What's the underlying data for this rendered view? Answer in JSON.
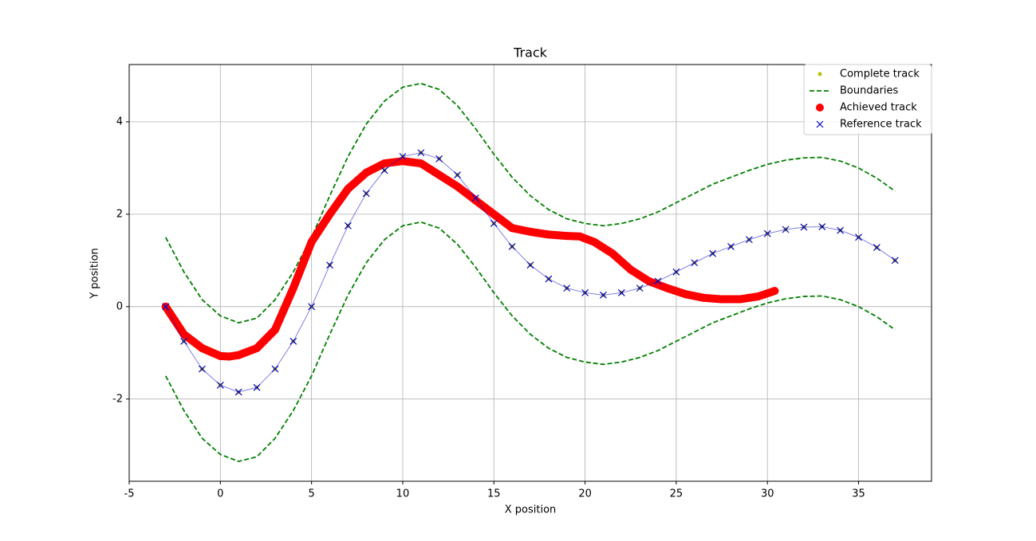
{
  "chart_data": {
    "type": "track",
    "title": "Track",
    "x_label": "X position",
    "y_label": "Y position",
    "xlim": [
      -5,
      39
    ],
    "ylim": [
      -3.78,
      5.24
    ],
    "xticks": [
      -5,
      0,
      5,
      10,
      15,
      20,
      25,
      30,
      35
    ],
    "yticks": [
      -2,
      0,
      2,
      4
    ],
    "grid": true,
    "legend": "upper right",
    "series": [
      {
        "name": "Complete track",
        "color": "#bfbf00",
        "style": "dot",
        "x": [
          -3,
          -2,
          -1,
          0,
          1,
          2,
          3,
          4,
          5,
          6,
          7,
          8,
          9,
          10,
          11,
          12,
          13,
          14,
          15,
          16,
          17,
          18,
          19,
          20,
          21,
          22,
          23,
          24,
          25,
          26,
          27,
          28,
          29,
          30,
          31,
          32,
          33,
          34,
          35,
          36,
          37
        ],
        "y": [
          0,
          -0.75,
          -1.35,
          -1.7,
          -1.85,
          -1.75,
          -1.35,
          -0.75,
          0,
          0.9,
          1.75,
          2.45,
          2.95,
          3.25,
          3.33,
          3.2,
          2.85,
          2.35,
          1.8,
          1.3,
          0.9,
          0.6,
          0.4,
          0.3,
          0.25,
          0.3,
          0.4,
          0.55,
          0.75,
          0.95,
          1.15,
          1.3,
          1.45,
          1.58,
          1.67,
          1.72,
          1.73,
          1.65,
          1.5,
          1.28,
          1.0
        ]
      },
      {
        "name": "Boundaries",
        "color": "#008000",
        "style": "dashed",
        "x": [
          -3,
          -2,
          -1,
          0,
          1,
          2,
          3,
          4,
          5,
          6,
          7,
          8,
          9,
          10,
          11,
          12,
          13,
          14,
          15,
          16,
          17,
          18,
          19,
          20,
          21,
          22,
          23,
          24,
          25,
          26,
          27,
          28,
          29,
          30,
          31,
          32,
          33,
          34,
          35,
          36,
          37
        ],
        "y_upper": [
          1.5,
          0.75,
          0.15,
          -0.2,
          -0.35,
          -0.25,
          0.15,
          0.75,
          1.5,
          2.4,
          3.25,
          3.95,
          4.45,
          4.75,
          4.83,
          4.7,
          4.35,
          3.85,
          3.3,
          2.8,
          2.4,
          2.1,
          1.9,
          1.8,
          1.75,
          1.8,
          1.9,
          2.05,
          2.25,
          2.45,
          2.65,
          2.8,
          2.95,
          3.08,
          3.17,
          3.22,
          3.23,
          3.15,
          3.0,
          2.78,
          2.5
        ],
        "y_lower": [
          -1.5,
          -2.25,
          -2.85,
          -3.2,
          -3.35,
          -3.25,
          -2.85,
          -2.25,
          -1.5,
          -0.6,
          0.25,
          0.95,
          1.45,
          1.75,
          1.83,
          1.7,
          1.35,
          0.85,
          0.3,
          -0.2,
          -0.6,
          -0.9,
          -1.1,
          -1.2,
          -1.25,
          -1.2,
          -1.1,
          -0.95,
          -0.75,
          -0.55,
          -0.35,
          -0.2,
          -0.05,
          0.08,
          0.17,
          0.22,
          0.23,
          0.15,
          0,
          -0.22,
          -0.5
        ]
      },
      {
        "name": "Achieved track",
        "color": "#ff0000",
        "style": "circle",
        "x": [
          -3,
          -2.5,
          -2,
          -1,
          0,
          0.5,
          1,
          2,
          3,
          4,
          5,
          6,
          7,
          8,
          9,
          10,
          11,
          12,
          13,
          14,
          15,
          16,
          17,
          18,
          19,
          19.7,
          20.5,
          21.5,
          22.5,
          23.5,
          24.5,
          25.5,
          26.5,
          27.5,
          28.5,
          29.5,
          30.4
        ],
        "y": [
          0,
          -0.3,
          -0.6,
          -0.9,
          -1.07,
          -1.08,
          -1.05,
          -0.9,
          -0.5,
          0.4,
          1.4,
          2.0,
          2.55,
          2.9,
          3.1,
          3.15,
          3.1,
          2.85,
          2.6,
          2.3,
          2.0,
          1.7,
          1.62,
          1.56,
          1.53,
          1.52,
          1.4,
          1.15,
          0.8,
          0.55,
          0.4,
          0.27,
          0.19,
          0.16,
          0.16,
          0.22,
          0.34
        ]
      },
      {
        "name": "Reference track",
        "color": "#0000cc",
        "style": "x",
        "x": [
          -3,
          -2,
          -1,
          0,
          1,
          2,
          3,
          4,
          5,
          6,
          7,
          8,
          9,
          10,
          11,
          12,
          13,
          14,
          15,
          16,
          17,
          18,
          19,
          20,
          21,
          22,
          23,
          24,
          25,
          26,
          27,
          28,
          29,
          30,
          31,
          32,
          33,
          34,
          35,
          36,
          37
        ],
        "y": [
          0,
          -0.75,
          -1.35,
          -1.7,
          -1.85,
          -1.75,
          -1.35,
          -0.75,
          0,
          0.9,
          1.75,
          2.45,
          2.95,
          3.25,
          3.33,
          3.2,
          2.85,
          2.35,
          1.8,
          1.3,
          0.9,
          0.6,
          0.4,
          0.3,
          0.25,
          0.3,
          0.4,
          0.55,
          0.75,
          0.95,
          1.15,
          1.3,
          1.45,
          1.58,
          1.67,
          1.72,
          1.73,
          1.65,
          1.5,
          1.28,
          1.0
        ]
      }
    ]
  }
}
